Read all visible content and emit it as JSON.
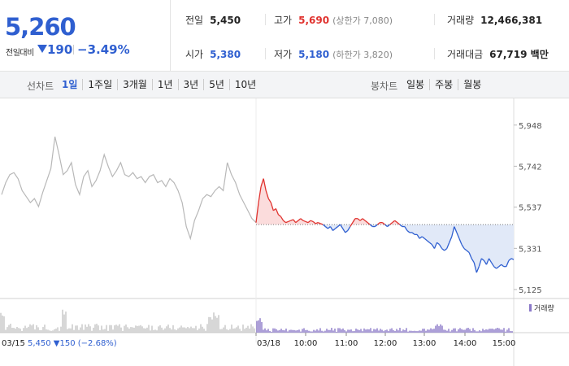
{
  "price": {
    "current": "5,260",
    "change_label": "전일대비",
    "change_amount": "190",
    "change_rate": "−3.49%"
  },
  "stats": {
    "prev_label": "전일",
    "prev_value": "5,450",
    "high_label": "고가",
    "high_value": "5,690",
    "high_limit": "(상한가 7,080)",
    "volume_label": "거래량",
    "volume_value": "12,466,381",
    "open_label": "시가",
    "open_value": "5,380",
    "low_label": "저가",
    "low_value": "5,180",
    "low_limit": "(하한가 3,820)",
    "amount_label": "거래대금",
    "amount_value": "67,719 백만"
  },
  "tabs": {
    "line_title": "선차트",
    "periods": [
      "1일",
      "1주일",
      "3개월",
      "1년",
      "3년",
      "5년",
      "10년"
    ],
    "active_period": 0,
    "candle_title": "봉차트",
    "candles": [
      "일봉",
      "주봉",
      "월봉"
    ]
  },
  "chart_data": {
    "type": "line",
    "y_ticks": [
      "5,948",
      "5,742",
      "5,537",
      "5,331",
      "5,125"
    ],
    "y_tick_values": [
      5948,
      5742,
      5537,
      5331,
      5125
    ],
    "ylim": [
      5080,
      6000
    ],
    "prev_close": 5450,
    "prev_day": {
      "date": "03/15",
      "close": "5,450",
      "change": "150",
      "change_rate": "(−2.68%)",
      "series": [
        5600,
        5660,
        5700,
        5710,
        5680,
        5620,
        5590,
        5560,
        5580,
        5540,
        5610,
        5670,
        5730,
        5890,
        5800,
        5700,
        5720,
        5760,
        5650,
        5600,
        5690,
        5720,
        5640,
        5670,
        5720,
        5800,
        5740,
        5690,
        5720,
        5760,
        5700,
        5690,
        5710,
        5680,
        5690,
        5660,
        5690,
        5700,
        5660,
        5670,
        5640,
        5680,
        5660,
        5620,
        5560,
        5440,
        5380,
        5470,
        5520,
        5580,
        5600,
        5590,
        5620,
        5640,
        5620,
        5760,
        5700,
        5660,
        5600,
        5560,
        5520,
        5480,
        5460
      ]
    },
    "today": {
      "date": "03/18",
      "x_ticks": [
        "10:00",
        "11:00",
        "12:00",
        "13:00",
        "14:00",
        "15:00"
      ],
      "series": [
        5460,
        5560,
        5640,
        5680,
        5620,
        5580,
        5560,
        5520,
        5530,
        5500,
        5490,
        5470,
        5460,
        5465,
        5470,
        5475,
        5460,
        5470,
        5480,
        5470,
        5465,
        5460,
        5470,
        5465,
        5455,
        5460,
        5455,
        5450,
        5440,
        5430,
        5440,
        5420,
        5430,
        5440,
        5450,
        5430,
        5410,
        5420,
        5440,
        5460,
        5480,
        5480,
        5470,
        5480,
        5470,
        5460,
        5450,
        5440,
        5440,
        5450,
        5460,
        5460,
        5450,
        5440,
        5450,
        5460,
        5470,
        5460,
        5450,
        5440,
        5440,
        5420,
        5410,
        5410,
        5400,
        5400,
        5380,
        5390,
        5380,
        5370,
        5360,
        5350,
        5330,
        5360,
        5350,
        5330,
        5320,
        5330,
        5360,
        5390,
        5440,
        5410,
        5380,
        5350,
        5330,
        5320,
        5310,
        5280,
        5260,
        5210,
        5240,
        5280,
        5270,
        5250,
        5280,
        5260,
        5240,
        5230,
        5240,
        5250,
        5240,
        5240,
        5270,
        5280,
        5275
      ]
    },
    "volume_legend": "거래량"
  },
  "colors": {
    "accent_blue": "#2f5fd0",
    "rise_red": "#e0322e",
    "prev_day_line": "#b8b8b8",
    "fill_red": "#fbdcdc",
    "fill_blue": "#e1e9f8",
    "volume_purple": "#8a78c8"
  }
}
